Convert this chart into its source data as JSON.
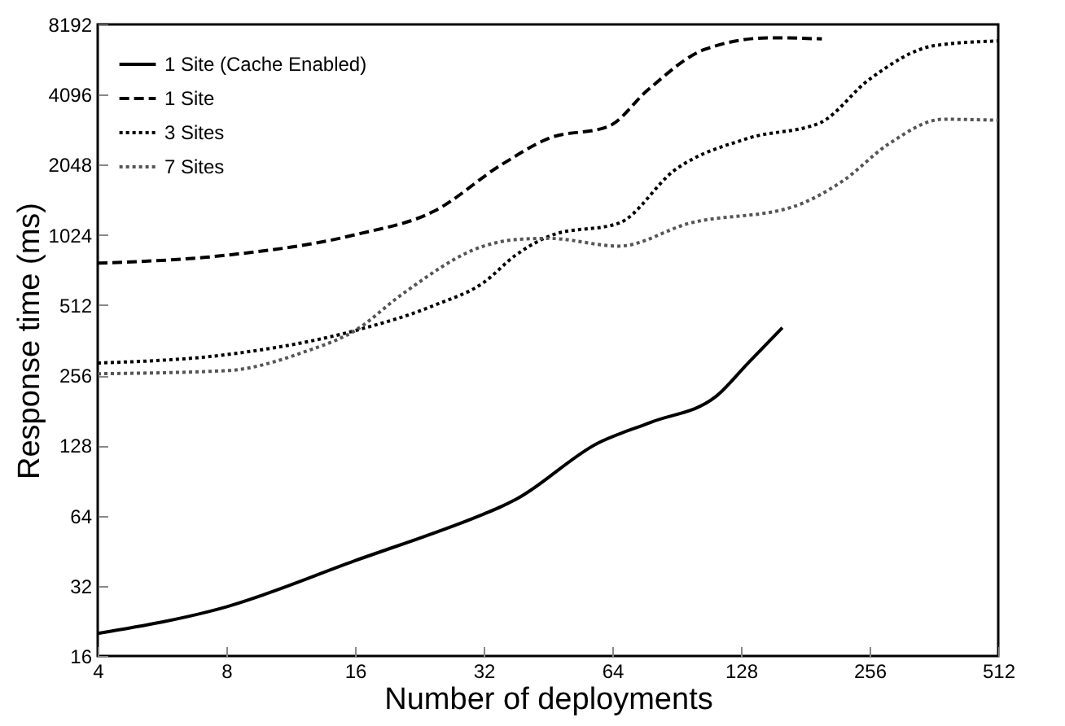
{
  "chart_data": {
    "type": "line",
    "xlabel": "Number of deployments",
    "ylabel": "Response time (ms)",
    "log": "xy",
    "xlim": [
      4,
      512
    ],
    "xticks": [
      4,
      8,
      16,
      32,
      64,
      128,
      256,
      512
    ],
    "ylim": [
      16,
      8192
    ],
    "yticks": [
      16,
      32,
      64,
      128,
      256,
      512,
      1024,
      2048,
      4096,
      8192
    ],
    "grid": false,
    "legend": "top left",
    "marker": "none",
    "series": [
      {
        "name": "1 Site (Cache Enabled)",
        "color": "#000000",
        "line_style": "solid",
        "x": [
          4,
          8,
          16,
          32,
          35.2,
          38,
          59.2,
          78.8,
          112,
          133,
          160
        ],
        "values": [
          20,
          26,
          41,
          65,
          70,
          75,
          131,
          161,
          208,
          289,
          410
        ]
      },
      {
        "name": "1 Site",
        "color": "#000000",
        "line_style": "dashed",
        "x": [
          4,
          8,
          16,
          24.6,
          35.2,
          45.5,
          62.9,
          77.3,
          106,
          150,
          198
        ],
        "values": [
          775,
          838,
          1026,
          1300,
          2048,
          2660,
          3000,
          4270,
          6430,
          7180,
          7100
        ]
      },
      {
        "name": "3 Sites",
        "color": "#000000",
        "line_style": "dotted",
        "x": [
          4,
          8,
          16,
          24.6,
          32,
          38,
          46.6,
          66.3,
          89.5,
          133,
          196,
          256,
          364,
          512
        ],
        "values": [
          289,
          314,
          398,
          512,
          640,
          838,
          1027,
          1150,
          1940,
          2660,
          3100,
          4770,
          6650,
          6960
        ]
      },
      {
        "name": "7 Sites",
        "color": "#555555",
        "line_style": "dotted",
        "x": [
          4,
          8,
          12.2,
          16,
          20.7,
          32,
          38,
          45.5,
          66.3,
          97,
          168,
          220,
          285,
          380,
          512
        ],
        "values": [
          260,
          268,
          323,
          398,
          573,
          917,
          978,
          990,
          917,
          1150,
          1346,
          1730,
          2530,
          3210,
          3180
        ]
      }
    ]
  }
}
